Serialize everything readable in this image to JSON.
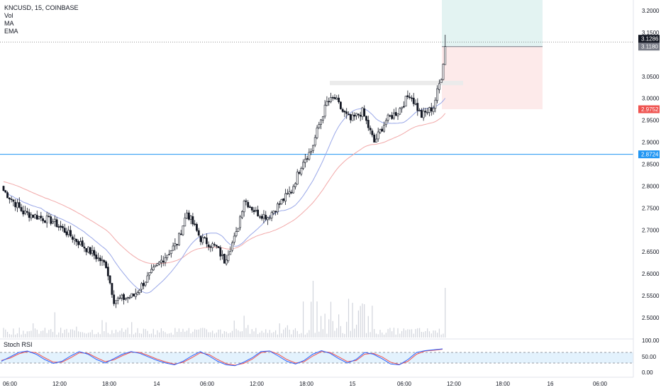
{
  "header": {
    "symbol_line": "KNCUSD, 15, COINBASE",
    "indicators": [
      "Vol",
      "MA",
      "EMA"
    ]
  },
  "rsi_panel": {
    "label": "Stoch RSI",
    "ticks": [
      "100.00",
      "50.00",
      "0.00"
    ]
  },
  "price_axis": {
    "ticks": [
      "3.2000",
      "3.1500",
      "3.0500",
      "3.0000",
      "2.9500",
      "2.9000",
      "2.8500",
      "2.8000",
      "2.7500",
      "2.7000",
      "2.6500",
      "2.6000",
      "2.5500",
      "2.5000"
    ],
    "badges": [
      {
        "line1": "3.1286",
        "line2": "00:07",
        "color": "#131722"
      },
      {
        "line1": "3.1180",
        "line2": "",
        "color": "#787b86"
      },
      {
        "line1": "2.9752",
        "line2": "",
        "color": "#ef5350"
      },
      {
        "line1": "2.8724",
        "line2": "",
        "color": "#2196f3"
      }
    ]
  },
  "time_axis": {
    "labels": [
      "06:00",
      "12:00",
      "18:00",
      "14",
      "06:00",
      "12:00",
      "18:00",
      "15",
      "06:00",
      "12:00",
      "18:00",
      "16",
      "06:00"
    ]
  },
  "colors": {
    "up": "#ffffff",
    "down": "#131722",
    "ma": "#9aa8e8",
    "ema": "#f2a9a9",
    "hline": "#2196f3",
    "stoch_k": "#2962ff",
    "stoch_d": "#ef5350"
  },
  "chart_data": {
    "type": "candlestick",
    "timeframe": "15",
    "ylim": [
      2.48,
      3.22
    ],
    "hline": 2.8724,
    "last_price": 3.1286,
    "position": {
      "entry": 3.118,
      "stop": 2.9752,
      "target": 3.22
    },
    "anchors": [
      {
        "t": 0,
        "p": 2.79
      },
      {
        "t": 10,
        "p": 2.74
      },
      {
        "t": 25,
        "p": 2.72
      },
      {
        "t": 40,
        "p": 2.665
      },
      {
        "t": 52,
        "p": 2.62
      },
      {
        "t": 56,
        "p": 2.54
      },
      {
        "t": 62,
        "p": 2.545
      },
      {
        "t": 66,
        "p": 2.55
      },
      {
        "t": 72,
        "p": 2.585
      },
      {
        "t": 80,
        "p": 2.63
      },
      {
        "t": 88,
        "p": 2.67
      },
      {
        "t": 93,
        "p": 2.74
      },
      {
        "t": 100,
        "p": 2.68
      },
      {
        "t": 108,
        "p": 2.66
      },
      {
        "t": 112,
        "p": 2.63
      },
      {
        "t": 118,
        "p": 2.69
      },
      {
        "t": 122,
        "p": 2.77
      },
      {
        "t": 128,
        "p": 2.74
      },
      {
        "t": 134,
        "p": 2.73
      },
      {
        "t": 140,
        "p": 2.76
      },
      {
        "t": 146,
        "p": 2.79
      },
      {
        "t": 152,
        "p": 2.86
      },
      {
        "t": 156,
        "p": 2.88
      },
      {
        "t": 160,
        "p": 2.94
      },
      {
        "t": 164,
        "p": 2.99
      },
      {
        "t": 168,
        "p": 3.0
      },
      {
        "t": 172,
        "p": 2.97
      },
      {
        "t": 176,
        "p": 2.95
      },
      {
        "t": 182,
        "p": 2.97
      },
      {
        "t": 188,
        "p": 2.9
      },
      {
        "t": 194,
        "p": 2.95
      },
      {
        "t": 200,
        "p": 2.97
      },
      {
        "t": 206,
        "p": 3.01
      },
      {
        "t": 212,
        "p": 2.96
      },
      {
        "t": 218,
        "p": 2.98
      },
      {
        "t": 222,
        "p": 3.05
      },
      {
        "t": 224,
        "p": 3.118
      }
    ],
    "stoch_rsi": {
      "k": [
        30,
        55,
        80,
        88,
        70,
        40,
        18,
        30,
        60,
        85,
        70,
        40,
        20,
        45,
        70,
        85,
        75,
        55,
        35,
        20,
        10,
        30,
        60,
        85,
        60,
        30,
        10,
        5,
        25,
        50,
        85,
        88,
        60,
        30,
        15,
        35,
        70,
        90,
        75,
        45,
        20,
        40,
        80,
        70,
        45,
        15,
        10,
        40,
        80,
        90,
        95,
        100
      ],
      "d": [
        35,
        48,
        72,
        85,
        78,
        50,
        25,
        25,
        50,
        78,
        75,
        50,
        28,
        38,
        62,
        82,
        80,
        62,
        42,
        26,
        14,
        24,
        50,
        78,
        68,
        40,
        16,
        8,
        18,
        42,
        78,
        88,
        70,
        40,
        20,
        28,
        60,
        85,
        80,
        55,
        28,
        34,
        70,
        75,
        55,
        25,
        12,
        30,
        70,
        88,
        92,
        98
      ]
    }
  }
}
